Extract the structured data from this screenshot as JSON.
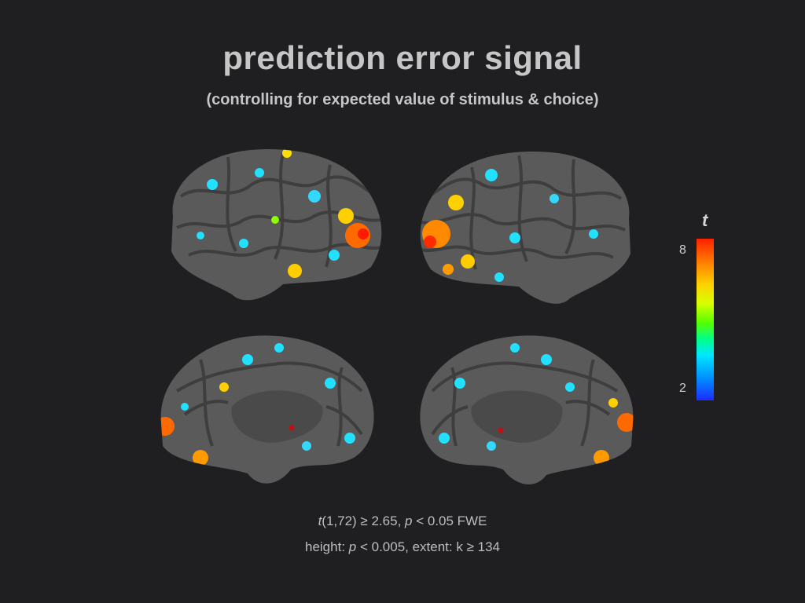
{
  "title": "prediction error signal",
  "subtitle": "(controlling for expected value of stimulus & choice)",
  "colorbar": {
    "symbol": "t",
    "max_label": "8",
    "min_label": "2",
    "colors": [
      "#ff2000",
      "#ffd000",
      "#55ff00",
      "#00e6ff",
      "#1d2cff"
    ]
  },
  "stats": {
    "line1_t": "t",
    "line1_a": "(1,72) ≥ 2.65, ",
    "line1_p": "p",
    "line1_b": " < 0.05 FWE",
    "line2_a": "height: ",
    "line2_p": "p",
    "line2_b": " < 0.005,  extent: k ≥ 134"
  },
  "brain_views": [
    "left-lateral",
    "right-lateral",
    "left-medial",
    "right-medial"
  ]
}
